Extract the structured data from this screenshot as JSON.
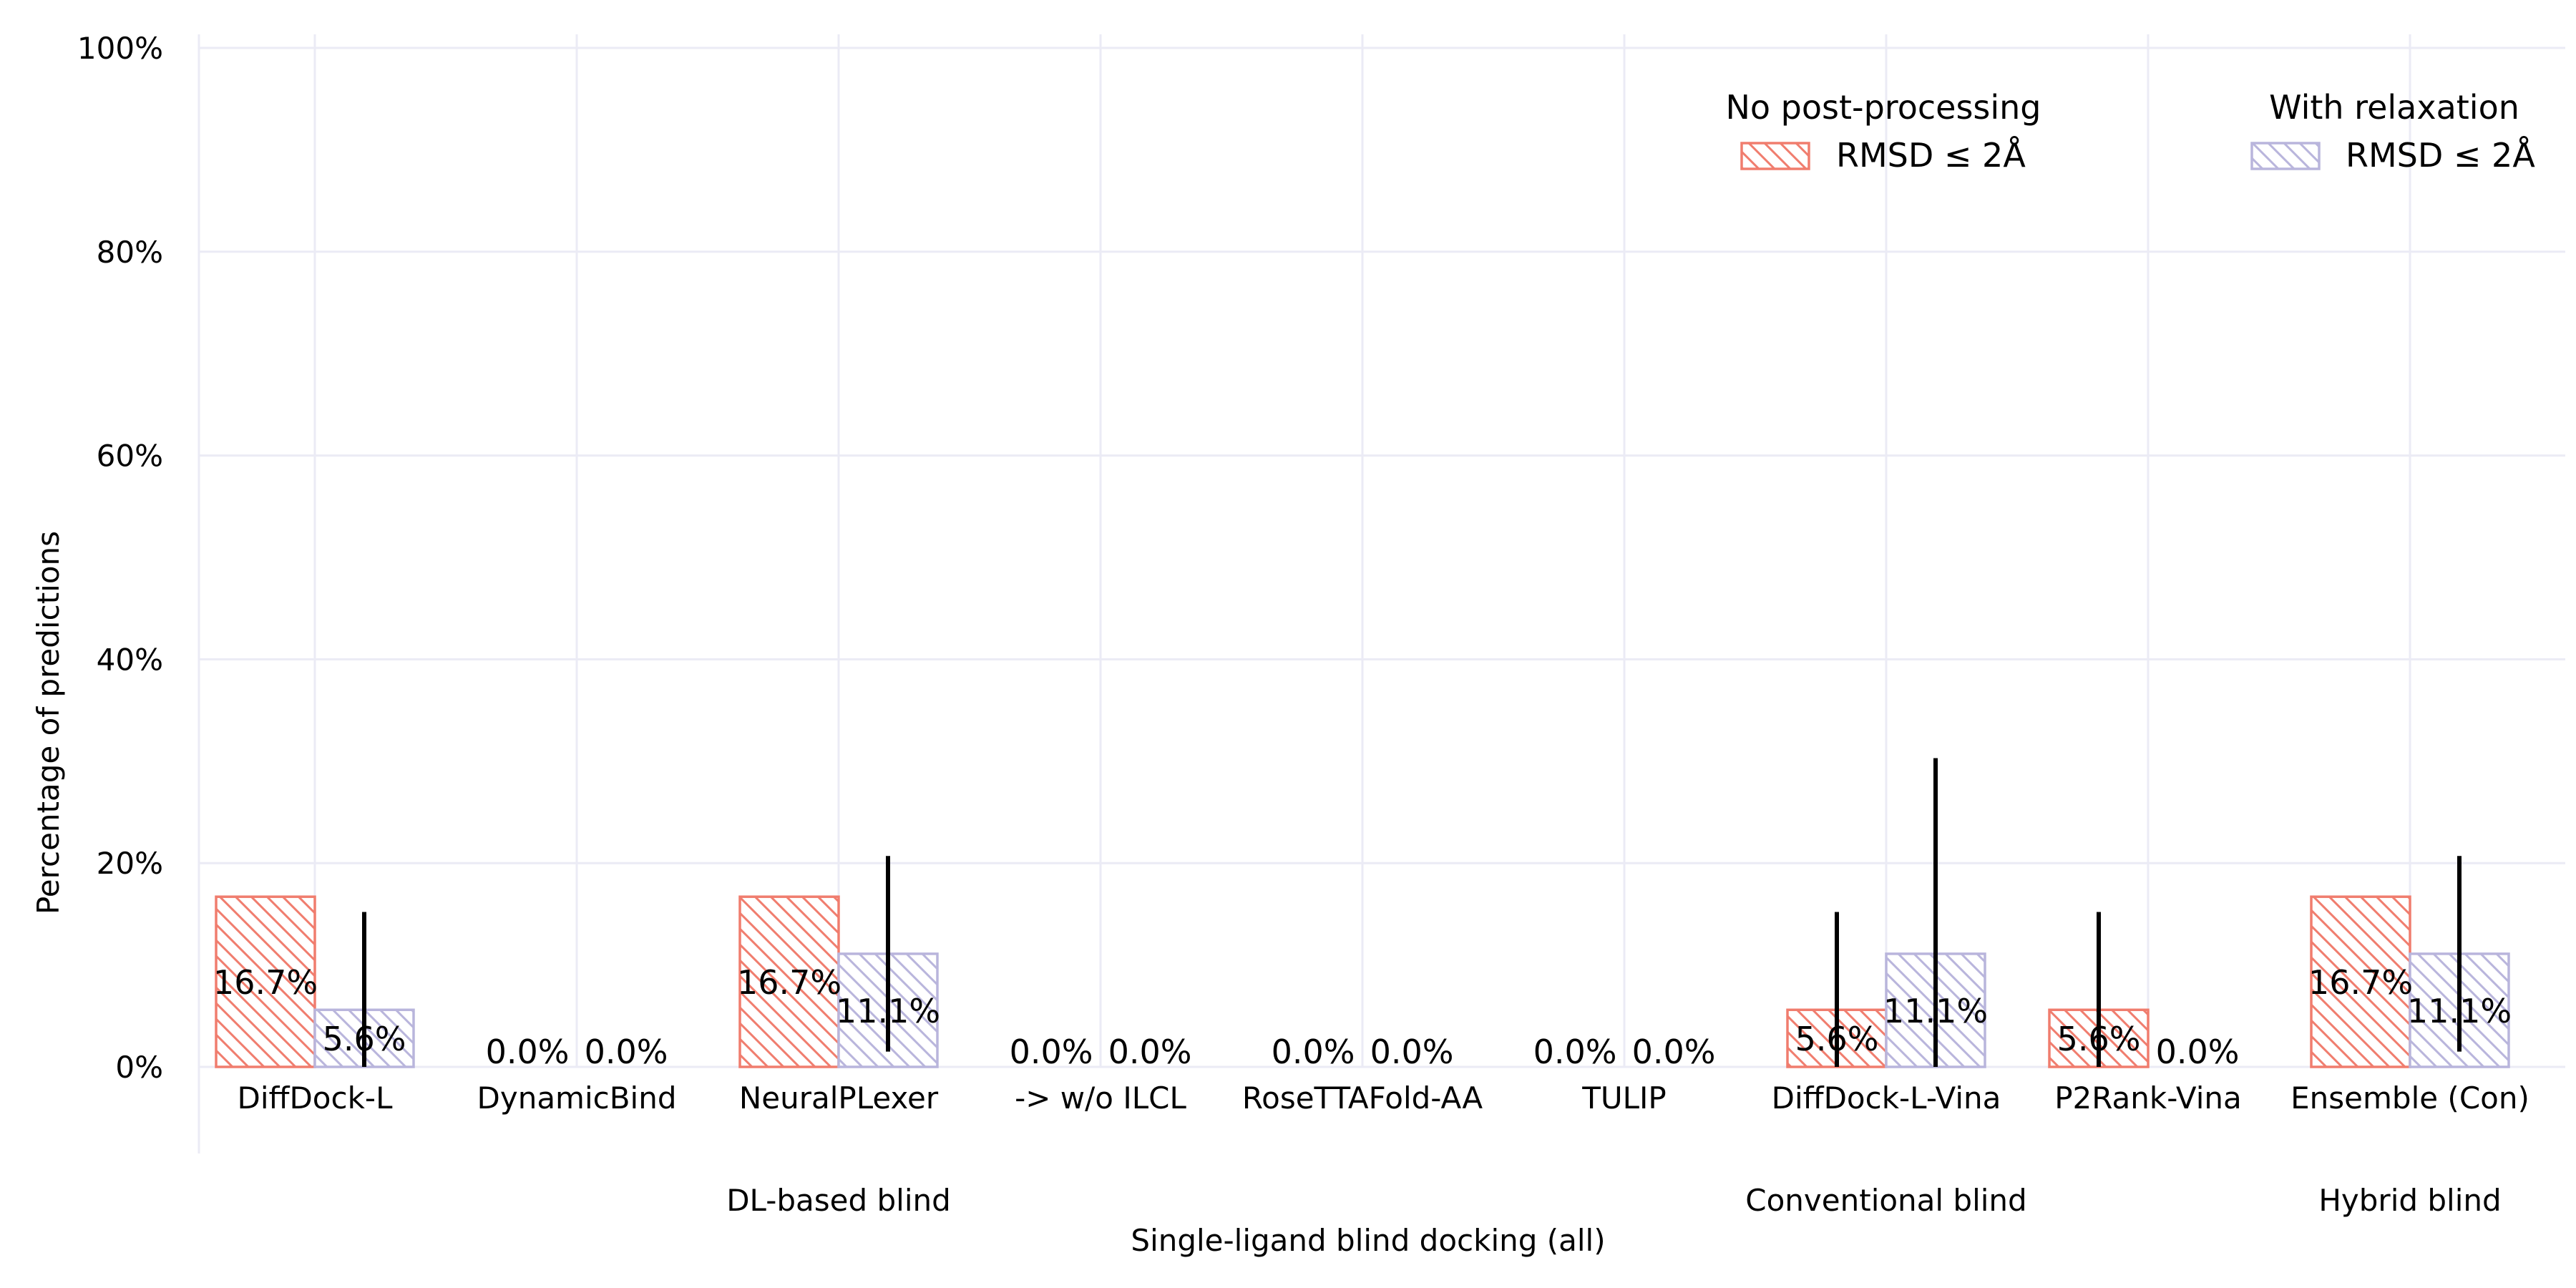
{
  "chart_data": {
    "type": "bar",
    "xlabel": "Single-ligand blind docking (all)",
    "ylabel": "Percentage of predictions",
    "ylim": [
      0,
      100
    ],
    "yticks": [
      "0%",
      "20%",
      "40%",
      "60%",
      "80%",
      "100%"
    ],
    "yticks_values": [
      0,
      20,
      40,
      60,
      80,
      100
    ],
    "grid": true,
    "categories": [
      "DiffDock-L",
      "DynamicBind",
      "NeuralPLexer",
      "->  w/o ILCL",
      "RoseTTAFold-AA",
      "TULIP",
      "DiffDock-L-Vina",
      "P2Rank-Vina",
      "Ensemble (Con)"
    ],
    "groups": [
      {
        "label": "DL-based blind",
        "center_index": 2
      },
      {
        "label": "Conventional blind",
        "center_index": 6
      },
      {
        "label": "Hybrid blind",
        "center_index": 8
      }
    ],
    "series": [
      {
        "name": "RMSD ≤ 2Å",
        "legend_title": "No post-processing",
        "color": "#f07d6e",
        "values": [
          16.7,
          0.0,
          16.7,
          0.0,
          0.0,
          0.0,
          5.6,
          5.6,
          16.7
        ],
        "labels": [
          "16.7%",
          "0.0%",
          "16.7%",
          "0.0%",
          "0.0%",
          "0.0%",
          "5.6%",
          "5.6%",
          "16.7%"
        ],
        "error_low": [
          null,
          null,
          null,
          null,
          null,
          null,
          0.0,
          0.0,
          null
        ],
        "error_high": [
          null,
          null,
          null,
          null,
          null,
          null,
          15.2,
          15.2,
          null
        ]
      },
      {
        "name": "RMSD ≤ 2Å",
        "legend_title": "With relaxation",
        "color": "#b9b5dc",
        "values": [
          5.6,
          0.0,
          11.1,
          0.0,
          0.0,
          0.0,
          11.1,
          0.0,
          11.1
        ],
        "labels": [
          "5.6%",
          "0.0%",
          "11.1%",
          "0.0%",
          "0.0%",
          "0.0%",
          "11.1%",
          "0.0%",
          "11.1%"
        ],
        "error_low": [
          0.0,
          null,
          1.5,
          null,
          null,
          null,
          0.0,
          null,
          1.5
        ],
        "error_high": [
          15.2,
          null,
          20.7,
          null,
          null,
          null,
          30.3,
          null,
          20.7
        ]
      }
    ],
    "legend_placement": "top-right"
  }
}
